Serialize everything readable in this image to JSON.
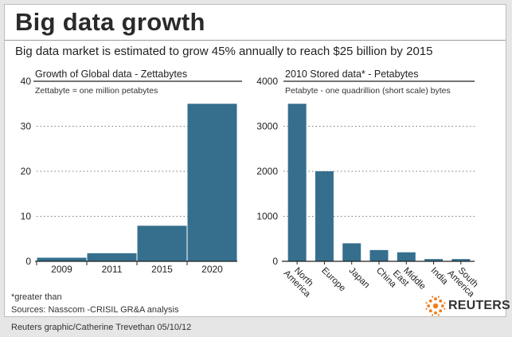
{
  "title": "Big data growth",
  "subtitle": "Big data market is estimated to grow 45% annually to reach $25 billion by 2015",
  "footnote_1": "*greater than",
  "footnote_2": "Sources: Nasscom -CRISIL GR&A analysis",
  "credit": "Reuters graphic/Catherine Trevethan   05/10/12",
  "logo_text": "REUTERS",
  "colors": {
    "bar": "#356f8d",
    "accent_orange": "#f07d1a"
  },
  "chart_data": [
    {
      "type": "bar",
      "title": "Growth of Global data - Zettabytes",
      "subtitle": "Zettabyte = one million petabytes",
      "categories": [
        "2009",
        "2011",
        "2015",
        "2020"
      ],
      "values": [
        0.8,
        1.8,
        7.9,
        35
      ],
      "ylim": [
        0,
        40
      ],
      "yticks": [
        0,
        10,
        20,
        30,
        40
      ],
      "grid": true
    },
    {
      "type": "bar",
      "title": "2010 Stored data* - Petabytes",
      "subtitle": "Petabyte - one quadrillion (short scale) bytes",
      "categories": [
        "North America",
        "Europe",
        "Japan",
        "China",
        "Middle East",
        "India",
        "South America"
      ],
      "values": [
        3500,
        2000,
        400,
        250,
        200,
        50,
        50
      ],
      "ylim": [
        0,
        4000
      ],
      "yticks": [
        0,
        1000,
        2000,
        3000,
        4000
      ],
      "grid": true
    }
  ]
}
